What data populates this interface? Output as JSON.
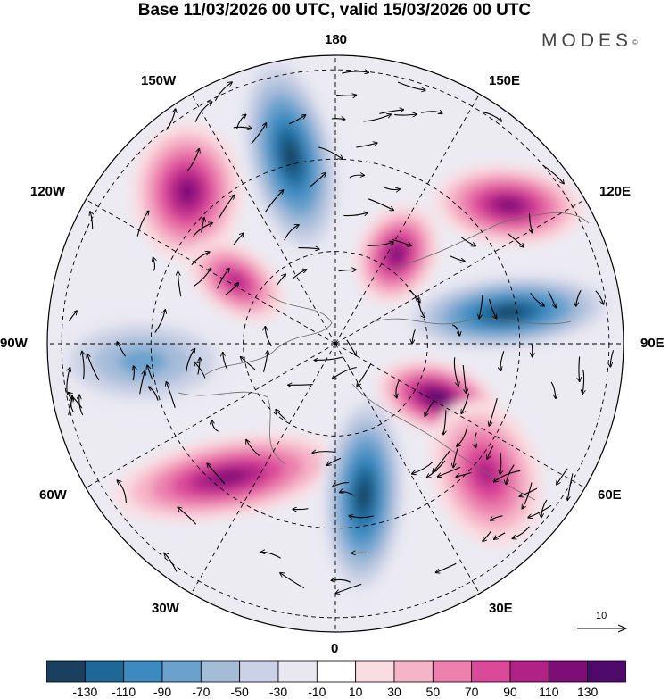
{
  "title": "Base 11/03/2026 00 UTC, valid 15/03/2026 00 UTC",
  "brand": {
    "name": "MODES",
    "mark": "©"
  },
  "longitude_labels": {
    "top": "180",
    "bottom": "0",
    "left": "90W",
    "right": "90E",
    "upper_left_1": "150W",
    "upper_left_2": "120W",
    "upper_right_1": "150E",
    "upper_right_2": "120E",
    "lower_left_1": "60W",
    "lower_left_2": "30W",
    "lower_right_1": "60E",
    "lower_right_2": "30E"
  },
  "reference_vector": {
    "label": "10"
  },
  "colorbar": {
    "ticks": [
      "-130",
      "-110",
      "-90",
      "-70",
      "-50",
      "-30",
      "-10",
      "10",
      "30",
      "50",
      "70",
      "90",
      "110",
      "130"
    ],
    "colors": [
      "#1b3f5e",
      "#1f6896",
      "#3c8ac0",
      "#6ba1cd",
      "#a5bcd9",
      "#ccd2e6",
      "#e9e8f2",
      "#ffffff",
      "#f9dde2",
      "#f5b4c8",
      "#ec80ae",
      "#db4a99",
      "#b22187",
      "#7d0e78",
      "#4f0a6b"
    ]
  },
  "anomaly_cells": [
    {
      "name": "pacific-low",
      "value": -130
    },
    {
      "name": "alaska-high",
      "value": 110
    },
    {
      "name": "canada-high",
      "value": 90
    },
    {
      "name": "hudson-low",
      "value": -70
    },
    {
      "name": "atlantic-high",
      "value": 110
    },
    {
      "name": "greenland-low",
      "value": -130
    },
    {
      "name": "scandinavia-high",
      "value": 130
    },
    {
      "name": "russia-high",
      "value": 90
    },
    {
      "name": "siberia-low",
      "value": -130
    },
    {
      "name": "east-siberia-high",
      "value": 110
    },
    {
      "name": "yakutia-high",
      "value": 110
    }
  ]
}
